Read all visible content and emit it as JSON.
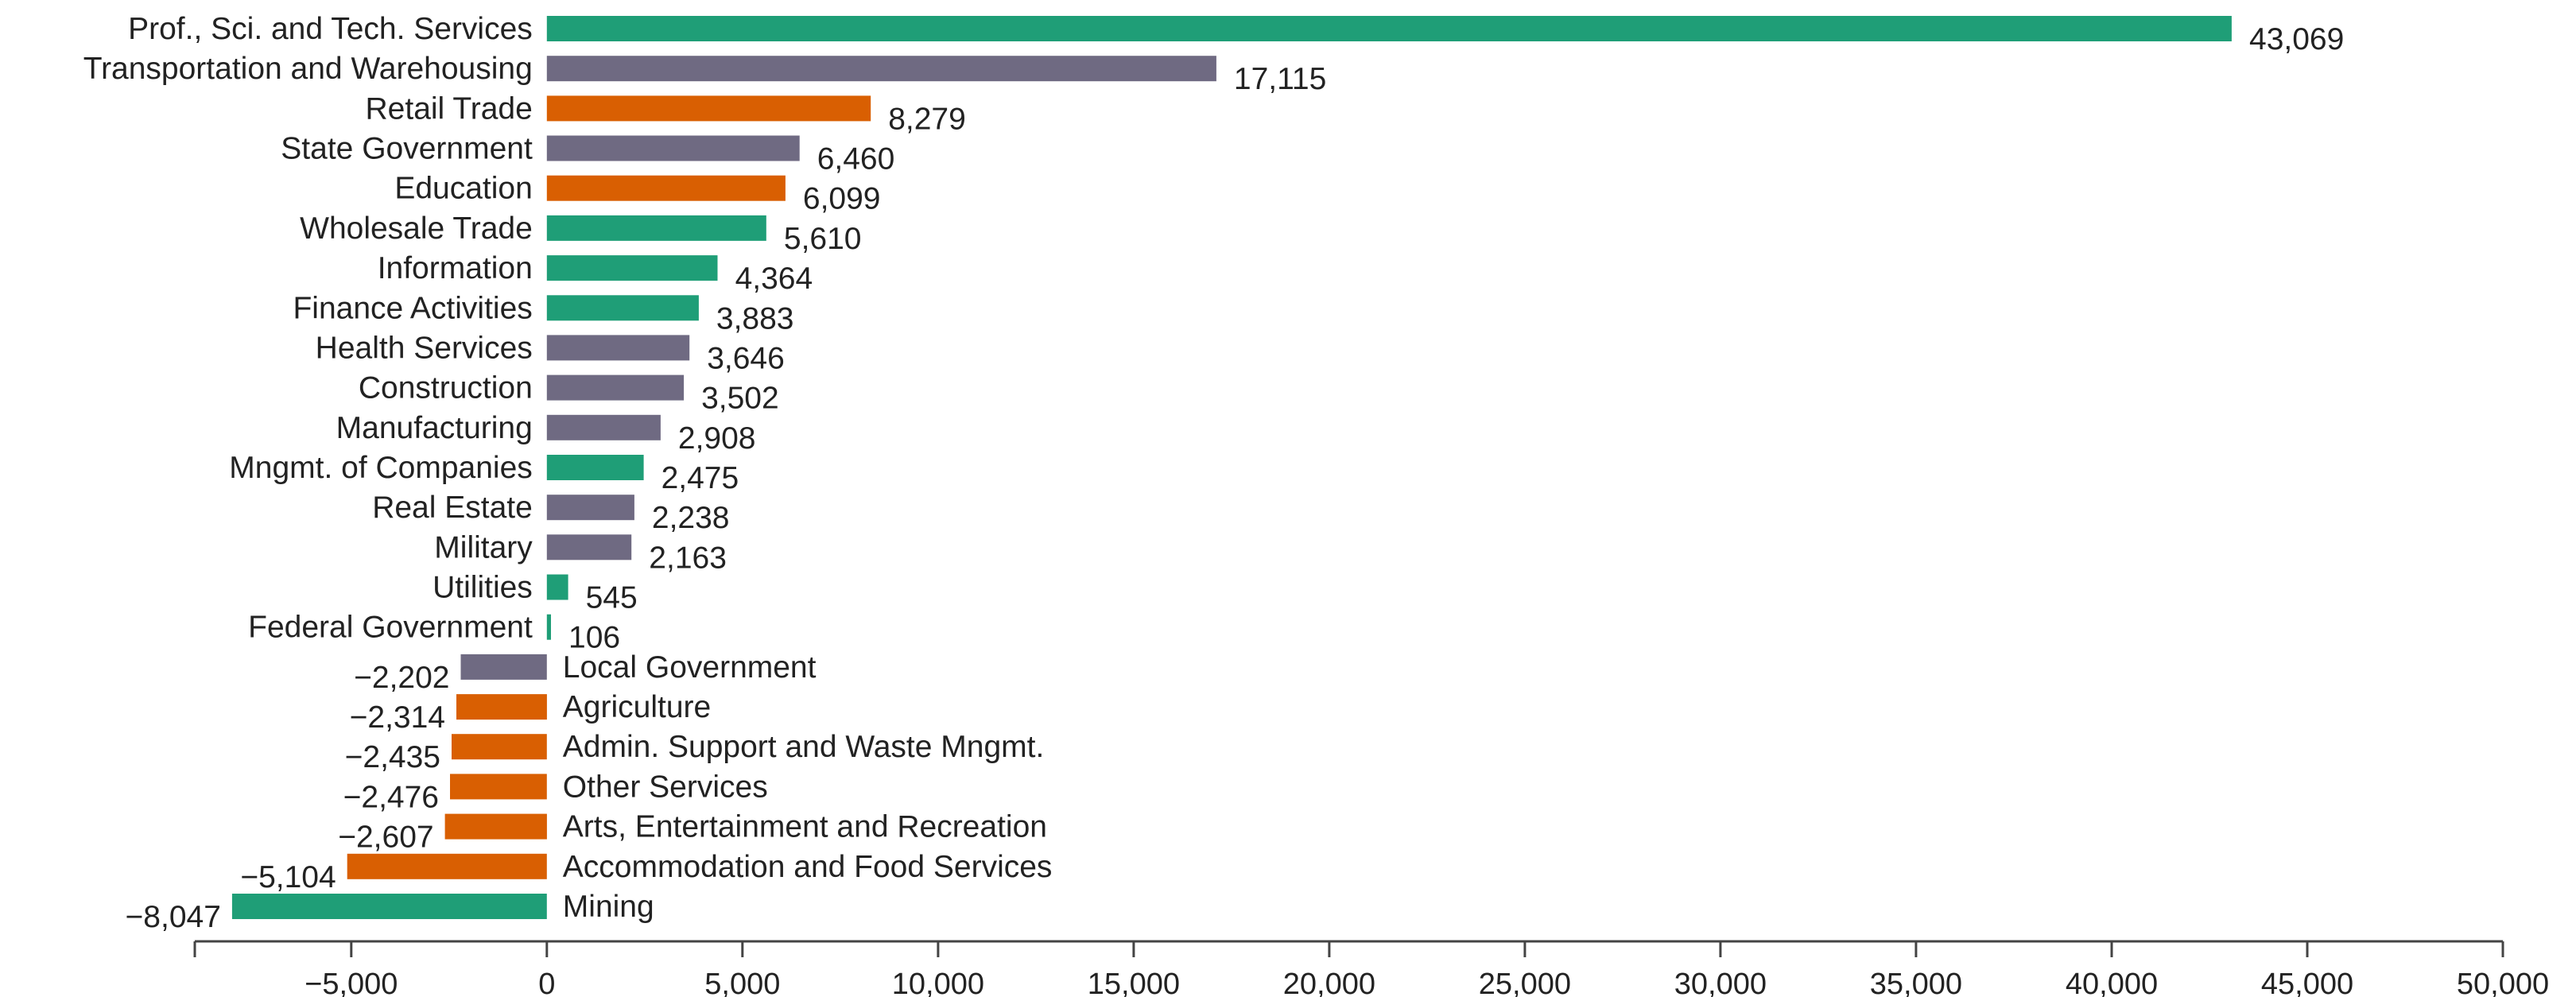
{
  "chart_data": {
    "type": "bar",
    "orientation": "horizontal",
    "categories": [
      "Prof., Sci. and Tech. Services",
      "Transportation and Warehousing",
      "Retail Trade",
      "State Government",
      "Education",
      "Wholesale Trade",
      "Information",
      "Finance Activities",
      "Health Services",
      "Construction",
      "Manufacturing",
      "Mngmt. of Companies",
      "Real Estate",
      "Military",
      "Utilities",
      "Federal Government",
      "Local Government",
      "Agriculture",
      "Admin. Support and Waste Mngmt.",
      "Other Services",
      "Arts, Entertainment and Recreation",
      "Accommodation and Food Services",
      "Mining"
    ],
    "values": [
      43069,
      17115,
      8279,
      6460,
      6099,
      5610,
      4364,
      3883,
      3646,
      3502,
      2908,
      2475,
      2238,
      2163,
      545,
      106,
      -2202,
      -2314,
      -2435,
      -2476,
      -2607,
      -5104,
      -8047
    ],
    "value_labels": [
      "43,069",
      "17,115",
      "8,279",
      "6,460",
      "6,099",
      "5,610",
      "4,364",
      "3,883",
      "3,646",
      "3,502",
      "2,908",
      "2,475",
      "2,238",
      "2,163",
      "545",
      "106",
      "−2,202",
      "−2,314",
      "−2,435",
      "−2,476",
      "−2,607",
      "−5,104",
      "−8,047"
    ],
    "bar_colors": [
      "#1f9e77",
      "#6f6a82",
      "#d95f02",
      "#6f6a82",
      "#d95f02",
      "#1f9e77",
      "#1f9e77",
      "#1f9e77",
      "#6f6a82",
      "#6f6a82",
      "#6f6a82",
      "#1f9e77",
      "#6f6a82",
      "#6f6a82",
      "#1f9e77",
      "#1f9e77",
      "#6f6a82",
      "#d95f02",
      "#d95f02",
      "#d95f02",
      "#d95f02",
      "#d95f02",
      "#1f9e77"
    ],
    "xlim": [
      -9000,
      50000
    ],
    "xticks": [
      -5000,
      0,
      5000,
      10000,
      15000,
      20000,
      25000,
      30000,
      35000,
      40000,
      45000,
      50000
    ],
    "xtick_labels": [
      "−5,000",
      "0",
      "5,000",
      "10,000",
      "15,000",
      "20,000",
      "25,000",
      "30,000",
      "35,000",
      "40,000",
      "45,000",
      "50,000"
    ],
    "title": "",
    "xlabel": "",
    "ylabel": "",
    "grid": false,
    "legend": "none"
  }
}
